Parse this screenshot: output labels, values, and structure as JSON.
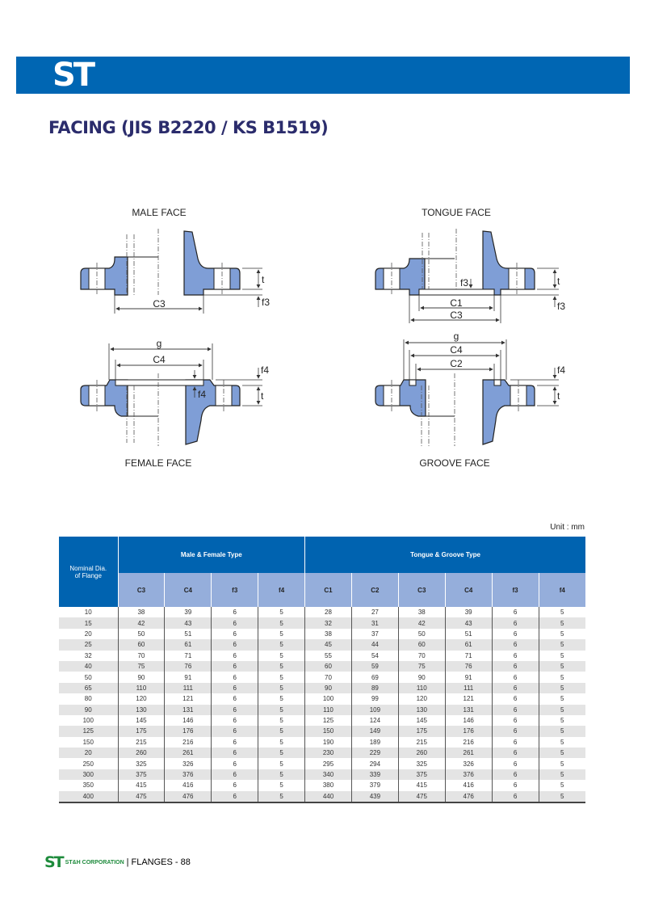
{
  "header": {
    "logo": "ST",
    "brand_color": "#0066b3"
  },
  "title": "FACING (JIS B2220 / KS B1519)",
  "diagrams": {
    "male": {
      "label": "MALE FACE",
      "dims": {
        "c3": "C3",
        "t": "t",
        "f3": "f3"
      }
    },
    "tongue": {
      "label": "TONGUE FACE",
      "dims": {
        "f3": "f3",
        "c1": "C1",
        "c3": "C3",
        "t": "t",
        "f3b": "f3"
      }
    },
    "female": {
      "label": "FEMALE FACE",
      "dims": {
        "g": "g",
        "c4": "C4",
        "f4": "f4",
        "f4b": "f4",
        "t": "t"
      }
    },
    "groove": {
      "label": "GROOVE FACE",
      "dims": {
        "g": "g",
        "c4": "C4",
        "c2": "C2",
        "f4": "f4",
        "t": "t"
      }
    },
    "fill_color": "#7f9ed6"
  },
  "unit": "Unit : mm",
  "table": {
    "nominal_header": "Nominal Dia. of Flange",
    "group1": "Male &  Female Type",
    "group2": "Tongue & Groove Type",
    "columns": [
      "C3",
      "C4",
      "f3",
      "f4",
      "C1",
      "C2",
      "C3",
      "C4",
      "f3",
      "f4"
    ],
    "rows": [
      [
        "10",
        "38",
        "39",
        "6",
        "5",
        "28",
        "27",
        "38",
        "39",
        "6",
        "5"
      ],
      [
        "15",
        "42",
        "43",
        "6",
        "5",
        "32",
        "31",
        "42",
        "43",
        "6",
        "5"
      ],
      [
        "20",
        "50",
        "51",
        "6",
        "5",
        "38",
        "37",
        "50",
        "51",
        "6",
        "5"
      ],
      [
        "25",
        "60",
        "61",
        "6",
        "5",
        "45",
        "44",
        "60",
        "61",
        "6",
        "5"
      ],
      [
        "32",
        "70",
        "71",
        "6",
        "5",
        "55",
        "54",
        "70",
        "71",
        "6",
        "5"
      ],
      [
        "40",
        "75",
        "76",
        "6",
        "5",
        "60",
        "59",
        "75",
        "76",
        "6",
        "5"
      ],
      [
        "50",
        "90",
        "91",
        "6",
        "5",
        "70",
        "69",
        "90",
        "91",
        "6",
        "5"
      ],
      [
        "65",
        "110",
        "111",
        "6",
        "5",
        "90",
        "89",
        "110",
        "111",
        "6",
        "5"
      ],
      [
        "80",
        "120",
        "121",
        "6",
        "5",
        "100",
        "99",
        "120",
        "121",
        "6",
        "5"
      ],
      [
        "90",
        "130",
        "131",
        "6",
        "5",
        "110",
        "109",
        "130",
        "131",
        "6",
        "5"
      ],
      [
        "100",
        "145",
        "146",
        "6",
        "5",
        "125",
        "124",
        "145",
        "146",
        "6",
        "5"
      ],
      [
        "125",
        "175",
        "176",
        "6",
        "5",
        "150",
        "149",
        "175",
        "176",
        "6",
        "5"
      ],
      [
        "150",
        "215",
        "216",
        "6",
        "5",
        "190",
        "189",
        "215",
        "216",
        "6",
        "5"
      ],
      [
        "20",
        "260",
        "261",
        "6",
        "5",
        "230",
        "229",
        "260",
        "261",
        "6",
        "5"
      ],
      [
        "250",
        "325",
        "326",
        "6",
        "5",
        "295",
        "294",
        "325",
        "326",
        "6",
        "5"
      ],
      [
        "300",
        "375",
        "376",
        "6",
        "5",
        "340",
        "339",
        "375",
        "376",
        "6",
        "5"
      ],
      [
        "350",
        "415",
        "416",
        "6",
        "5",
        "380",
        "379",
        "415",
        "416",
        "6",
        "5"
      ],
      [
        "400",
        "475",
        "476",
        "6",
        "5",
        "440",
        "439",
        "475",
        "476",
        "6",
        "5"
      ]
    ]
  },
  "footer": {
    "logo": "ST",
    "company": "ST&H CORPORATION",
    "separator": "|",
    "page": "FLANGES - 88"
  }
}
